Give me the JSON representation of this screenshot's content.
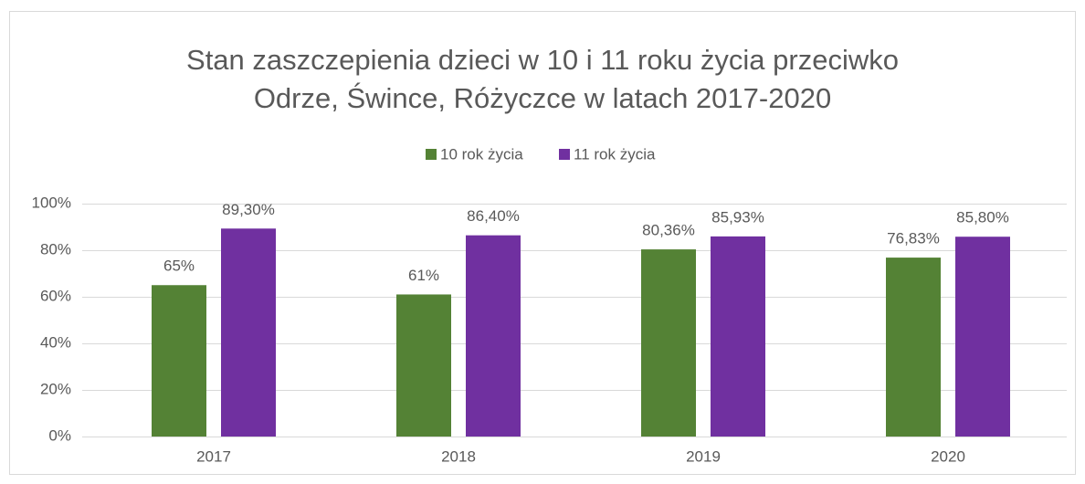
{
  "chart_data": {
    "type": "bar",
    "title": [
      "Stan zaszczepienia dzieci w 10 i 11 roku życia przeciwko",
      "Odrze, Śwince, Różyczce w latach 2017-2020"
    ],
    "categories": [
      "2017",
      "2018",
      "2019",
      "2020"
    ],
    "series": [
      {
        "name": "10 rok życia",
        "color": "#548235",
        "values": [
          65,
          61,
          80.36,
          76.83
        ],
        "value_labels": [
          "65%",
          "61%",
          "80,36%",
          "76,83%"
        ]
      },
      {
        "name": "11 rok życia",
        "color": "#7030a0",
        "values": [
          89.3,
          86.4,
          85.93,
          85.8
        ],
        "value_labels": [
          "89,30%",
          "86,40%",
          "85,93%",
          "85,80%"
        ]
      }
    ],
    "ylim": [
      0,
      100
    ],
    "yticks": [
      {
        "value": 0,
        "label": "0%"
      },
      {
        "value": 20,
        "label": "20%"
      },
      {
        "value": 40,
        "label": "40%"
      },
      {
        "value": 60,
        "label": "60%"
      },
      {
        "value": 80,
        "label": "80%"
      },
      {
        "value": 100,
        "label": "100%"
      }
    ],
    "grid": true,
    "legend": "top"
  }
}
